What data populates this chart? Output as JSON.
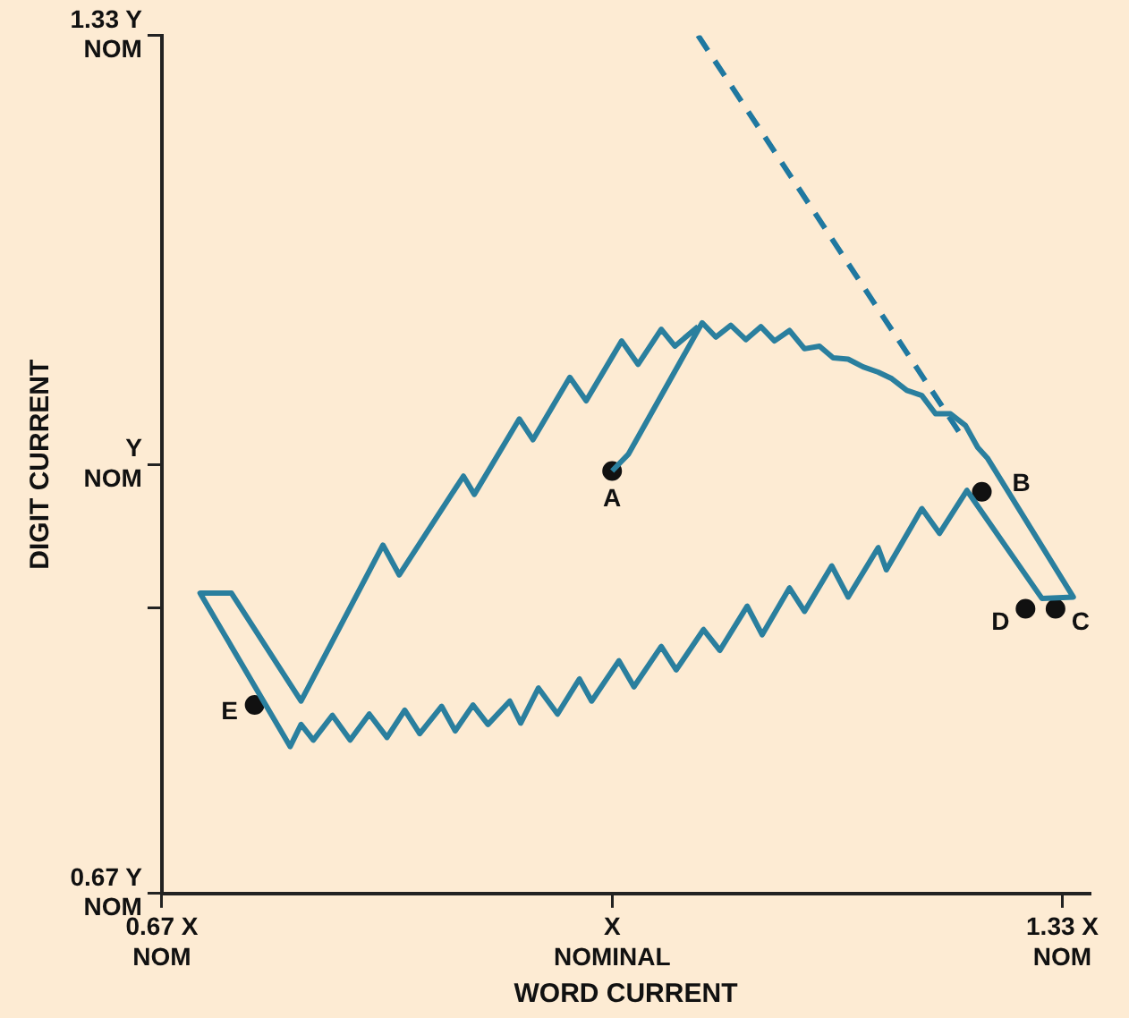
{
  "chart_data": {
    "type": "line",
    "xlabel": "WORD CURRENT",
    "ylabel": "DIGIT CURRENT",
    "xlim": [
      0.67,
      1.35
    ],
    "ylim": [
      0.67,
      1.33
    ],
    "xticks": [
      {
        "value": 0.67,
        "label": "0.67 X\nNOM"
      },
      {
        "value": 1.0,
        "label": "X\nNOMINAL"
      },
      {
        "value": 1.33,
        "label": "1.33 X\nNOM"
      }
    ],
    "yticks": [
      {
        "value": 0.67,
        "label": "0.67 Y\nNOM"
      },
      {
        "value": 0.89,
        "label": null
      },
      {
        "value": 1.0,
        "label": "Y\nNOM"
      },
      {
        "value": 1.33,
        "label": "1.33 Y\nNOM"
      }
    ],
    "grid": false,
    "legend": false,
    "series": [
      {
        "color": "#2a7f9e",
        "marker": "none",
        "line_style": "solid",
        "x": [
          1.0,
          1.012,
          1.066,
          1.076,
          1.087,
          1.098,
          1.109,
          1.119,
          1.13,
          1.141,
          1.152,
          1.162,
          1.173,
          1.184,
          1.195,
          1.205,
          1.216,
          1.227,
          1.237,
          1.248,
          1.259,
          1.268,
          1.275,
          1.338,
          1.315,
          1.26,
          1.24,
          1.227,
          1.201,
          1.195,
          1.173,
          1.161,
          1.141,
          1.13,
          1.11,
          1.099,
          1.079,
          1.067,
          1.047,
          1.036,
          1.016,
          1.005,
          0.985,
          0.976,
          0.96,
          0.946,
          0.933,
          0.925,
          0.909,
          0.898,
          0.885,
          0.875,
          0.859,
          0.848,
          0.835,
          0.822,
          0.808,
          0.795,
          0.781,
          0.772,
          0.764,
          0.698,
          0.721,
          0.772,
          0.832,
          0.844,
          0.891,
          0.899,
          0.932,
          0.942,
          0.969,
          0.981,
          1.007,
          1.019,
          1.036,
          1.046,
          1.063
        ],
        "values": [
          0.995,
          1.008,
          1.109,
          1.098,
          1.107,
          1.096,
          1.106,
          1.095,
          1.103,
          1.089,
          1.091,
          1.082,
          1.081,
          1.075,
          1.071,
          1.066,
          1.057,
          1.053,
          1.039,
          1.039,
          1.03,
          1.013,
          1.005,
          0.898,
          0.897,
          0.98,
          0.947,
          0.966,
          0.919,
          0.936,
          0.898,
          0.922,
          0.887,
          0.905,
          0.869,
          0.891,
          0.857,
          0.873,
          0.842,
          0.86,
          0.829,
          0.849,
          0.818,
          0.835,
          0.808,
          0.828,
          0.801,
          0.818,
          0.8,
          0.815,
          0.795,
          0.814,
          0.793,
          0.811,
          0.79,
          0.808,
          0.788,
          0.807,
          0.788,
          0.8,
          0.783,
          0.901,
          0.901,
          0.818,
          0.938,
          0.915,
          0.991,
          0.977,
          1.035,
          1.019,
          1.067,
          1.049,
          1.095,
          1.077,
          1.104,
          1.091,
          1.106
        ]
      },
      {
        "color": "#1f78a0",
        "marker": "none",
        "line_style": "dashed",
        "x": [
          1.063,
          1.258
        ],
        "values": [
          1.33,
          1.019
        ]
      },
      {
        "type": "scatter",
        "color": "#111111",
        "marker": "circle",
        "x": [
          1.0,
          1.271,
          1.325,
          1.303,
          0.738
        ],
        "values": [
          0.995,
          0.979,
          0.889,
          0.889,
          0.815
        ]
      }
    ],
    "annotations": [
      {
        "text": "A",
        "x": 1.0,
        "y": 0.995
      },
      {
        "text": "B",
        "x": 1.271,
        "y": 0.979
      },
      {
        "text": "C",
        "x": 1.325,
        "y": 0.889
      },
      {
        "text": "D",
        "x": 1.303,
        "y": 0.889
      },
      {
        "text": "E",
        "x": 0.738,
        "y": 0.815
      }
    ]
  }
}
